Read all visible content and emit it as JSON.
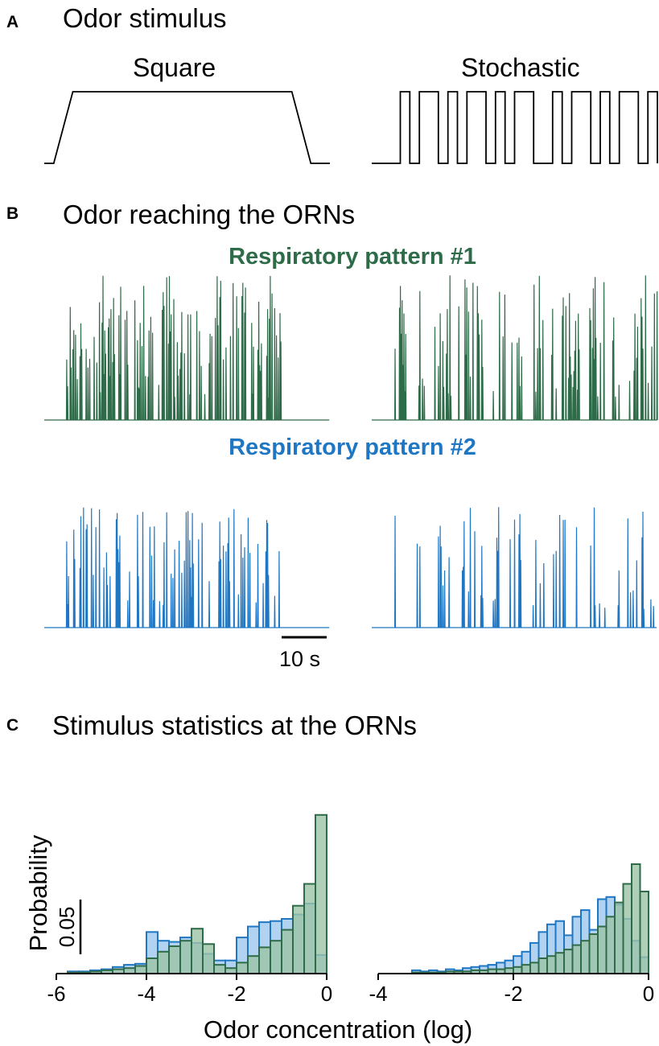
{
  "panel_a": {
    "letter": "A",
    "title": "Odor stimulus",
    "square_label": "Square",
    "stochastic_label": "Stochastic"
  },
  "panel_b": {
    "letter": "B",
    "title": "Odor reaching the ORNs",
    "pattern1_label": "Respiratory pattern #1",
    "pattern2_label": "Respiratory pattern #2",
    "pattern1_color": "#2e6b48",
    "pattern2_color": "#1f77c4",
    "time_scale_label": "10 s"
  },
  "panel_c": {
    "letter": "C",
    "title": "Stimulus statistics at the ORNs",
    "ylabel": "Probability",
    "xlabel": "Odor concentration (log)",
    "y_scale_label": "0.05"
  },
  "chart_data": [
    {
      "type": "line",
      "panel": "A",
      "name": "Square",
      "x": [
        0,
        1,
        3,
        26,
        28,
        30
      ],
      "y": [
        0,
        0,
        1,
        1,
        0,
        0
      ]
    },
    {
      "type": "line",
      "panel": "A",
      "name": "Stochastic",
      "x": [
        0,
        3,
        4,
        5,
        6,
        7,
        8,
        9,
        10,
        11,
        12,
        13,
        14,
        15,
        16,
        17,
        18,
        19,
        20,
        21,
        22,
        23,
        24,
        25,
        26,
        27,
        28,
        29,
        30
      ],
      "y": [
        0,
        1,
        0,
        1,
        1,
        0,
        1,
        0,
        1,
        1,
        0,
        1,
        0,
        1,
        1,
        0,
        0,
        1,
        0,
        1,
        1,
        0,
        1,
        0,
        1,
        1,
        0,
        1,
        0
      ]
    },
    {
      "type": "bar",
      "panel": "C",
      "name": "histogram-square",
      "xlim": [
        -6,
        0
      ],
      "bin_width": 0.25,
      "bin_left": [
        -5.75,
        -5.5,
        -5.25,
        -5.0,
        -4.75,
        -4.5,
        -4.25,
        -4.0,
        -3.75,
        -3.5,
        -3.25,
        -3.0,
        -2.75,
        -2.5,
        -2.25,
        -2.0,
        -1.75,
        -1.5,
        -1.25,
        -1.0,
        -0.75,
        -0.5,
        -0.25
      ],
      "series": [
        {
          "color": "#1f77c4",
          "values": [
            0.002,
            0.002,
            0.003,
            0.004,
            0.006,
            0.008,
            0.009,
            0.038,
            0.03,
            0.029,
            0.033,
            0.028,
            0.018,
            0.012,
            0.012,
            0.033,
            0.043,
            0.047,
            0.048,
            0.05,
            0.054,
            0.064,
            0.017
          ]
        },
        {
          "color": "#2e6b48",
          "values": [
            0.001,
            0.001,
            0.002,
            0.003,
            0.004,
            0.005,
            0.007,
            0.014,
            0.02,
            0.025,
            0.03,
            0.041,
            0.027,
            0.008,
            0.005,
            0.01,
            0.016,
            0.024,
            0.03,
            0.04,
            0.062,
            0.082,
            0.145
          ]
        }
      ]
    },
    {
      "type": "bar",
      "panel": "C",
      "name": "histogram-stochastic",
      "xlim": [
        -4,
        0
      ],
      "bin_width": 0.125,
      "bin_left": [
        -3.5,
        -3.375,
        -3.25,
        -3.125,
        -3.0,
        -2.875,
        -2.75,
        -2.625,
        -2.5,
        -2.375,
        -2.25,
        -2.125,
        -2.0,
        -1.875,
        -1.75,
        -1.625,
        -1.5,
        -1.375,
        -1.25,
        -1.125,
        -1.0,
        -0.875,
        -0.75,
        -0.625,
        -0.5,
        -0.375,
        -0.25,
        -0.125
      ],
      "series": [
        {
          "color": "#1f77c4",
          "values": [
            0.003,
            0.002,
            0.003,
            0.002,
            0.004,
            0.003,
            0.005,
            0.006,
            0.007,
            0.008,
            0.01,
            0.012,
            0.016,
            0.02,
            0.028,
            0.038,
            0.045,
            0.048,
            0.035,
            0.052,
            0.058,
            0.04,
            0.068,
            0.07,
            0.063,
            0.05,
            0.03,
            0.015
          ]
        },
        {
          "color": "#2e6b48",
          "values": [
            0.001,
            0.001,
            0.001,
            0.001,
            0.002,
            0.002,
            0.002,
            0.003,
            0.003,
            0.004,
            0.004,
            0.005,
            0.006,
            0.008,
            0.01,
            0.014,
            0.016,
            0.019,
            0.022,
            0.026,
            0.03,
            0.036,
            0.043,
            0.052,
            0.065,
            0.082,
            0.1,
            0.075
          ]
        }
      ]
    }
  ]
}
